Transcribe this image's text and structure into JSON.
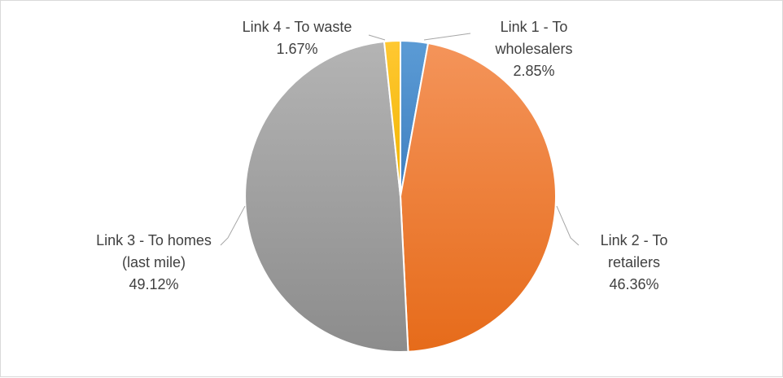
{
  "chart_data": {
    "type": "pie",
    "title": "",
    "start_angle_deg": 0,
    "direction": "clockwise",
    "slices": [
      {
        "label": [
          "Link 1 - To",
          "wholesalers"
        ],
        "percent_text": "2.85%",
        "value": 2.85,
        "color": "#5b9bd5",
        "color_dark": "#3f7fc0"
      },
      {
        "label": [
          "Link 2 - To",
          "retailers"
        ],
        "percent_text": "46.36%",
        "value": 46.36,
        "color": "#f4945a",
        "color_dark": "#e66b1a"
      },
      {
        "label": [
          "Link 3 - To homes",
          "(last mile)"
        ],
        "percent_text": "49.12%",
        "value": 49.12,
        "color": "#b4b4b4",
        "color_dark": "#8c8c8c"
      },
      {
        "label": [
          "Link 4 - To waste"
        ],
        "percent_text": "1.67%",
        "value": 1.67,
        "color": "#ffc832",
        "color_dark": "#f0b400"
      }
    ]
  }
}
